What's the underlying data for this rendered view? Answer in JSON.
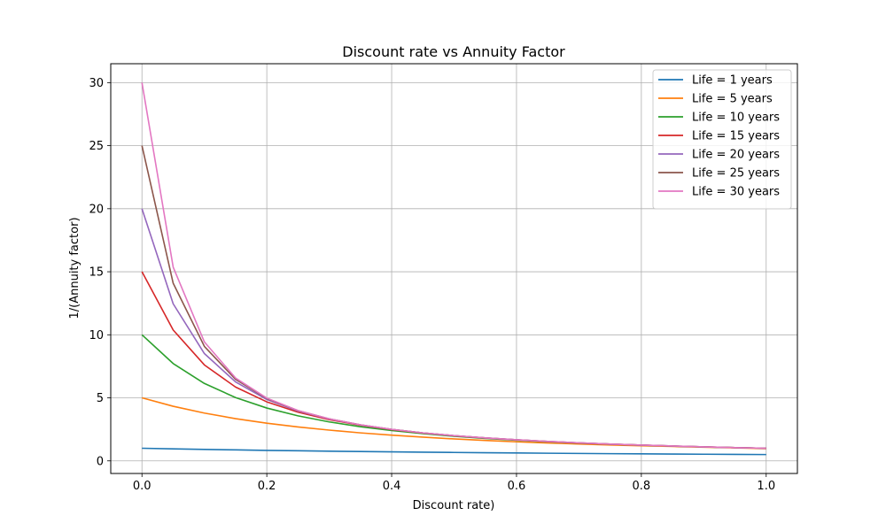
{
  "chart_data": {
    "type": "line",
    "title": "Discount rate vs Annuity Factor",
    "xlabel": "Discount rate)",
    "ylabel": "1/(Annuity factor)",
    "xlim": [
      -0.05,
      1.05
    ],
    "ylim": [
      -1.0,
      31.5
    ],
    "xticks": [
      0.0,
      0.2,
      0.4,
      0.6,
      0.8,
      1.0
    ],
    "xtick_labels": [
      "0.0",
      "0.2",
      "0.4",
      "0.6",
      "0.8",
      "1.0"
    ],
    "yticks": [
      0,
      5,
      10,
      15,
      20,
      25,
      30
    ],
    "ytick_labels": [
      "0",
      "5",
      "10",
      "15",
      "20",
      "25",
      "30"
    ],
    "grid": true,
    "legend_position": "top-right",
    "x": [
      0.0,
      0.05,
      0.1,
      0.15,
      0.2,
      0.25,
      0.3,
      0.35,
      0.4,
      0.45,
      0.5,
      0.55,
      0.6,
      0.65,
      0.7,
      0.75,
      0.8,
      0.85,
      0.9,
      0.95,
      1.0
    ],
    "series": [
      {
        "name": "Life = 1 years",
        "color": "#1f77b4",
        "values": [
          1.0,
          0.952,
          0.909,
          0.87,
          0.833,
          0.8,
          0.769,
          0.741,
          0.714,
          0.69,
          0.667,
          0.645,
          0.625,
          0.606,
          0.588,
          0.571,
          0.556,
          0.541,
          0.526,
          0.513,
          0.5
        ]
      },
      {
        "name": "Life = 5 years",
        "color": "#ff7f0e",
        "values": [
          5.0,
          4.33,
          3.79,
          3.35,
          2.99,
          2.69,
          2.44,
          2.22,
          2.04,
          1.88,
          1.74,
          1.62,
          1.51,
          1.42,
          1.34,
          1.26,
          1.2,
          1.14,
          1.08,
          1.03,
          0.97
        ]
      },
      {
        "name": "Life = 10 years",
        "color": "#2ca02c",
        "values": [
          10.0,
          7.72,
          6.14,
          5.02,
          4.19,
          3.57,
          3.09,
          2.71,
          2.41,
          2.16,
          1.95,
          1.78,
          1.64,
          1.51,
          1.41,
          1.32,
          1.24,
          1.17,
          1.1,
          1.05,
          1.0
        ]
      },
      {
        "name": "Life = 15 years",
        "color": "#d62728",
        "values": [
          15.0,
          10.38,
          7.61,
          5.85,
          4.68,
          3.86,
          3.27,
          2.83,
          2.48,
          2.21,
          1.99,
          1.81,
          1.66,
          1.53,
          1.42,
          1.33,
          1.25,
          1.17,
          1.11,
          1.05,
          1.0
        ]
      },
      {
        "name": "Life = 20 years",
        "color": "#9467bd",
        "values": [
          20.0,
          12.46,
          8.51,
          6.26,
          4.87,
          3.95,
          3.32,
          2.85,
          2.5,
          2.22,
          2.0,
          1.82,
          1.67,
          1.54,
          1.43,
          1.33,
          1.25,
          1.18,
          1.11,
          1.05,
          1.0
        ]
      },
      {
        "name": "Life = 25 years",
        "color": "#8c564b",
        "values": [
          25.0,
          14.09,
          9.08,
          6.46,
          4.95,
          3.98,
          3.33,
          2.86,
          2.5,
          2.22,
          2.0,
          1.82,
          1.67,
          1.54,
          1.43,
          1.33,
          1.25,
          1.18,
          1.11,
          1.05,
          1.0
        ]
      },
      {
        "name": "Life = 30 years",
        "color": "#e377c2",
        "values": [
          30.0,
          15.37,
          9.43,
          6.57,
          4.98,
          3.99,
          3.33,
          2.86,
          2.5,
          2.22,
          2.0,
          1.82,
          1.67,
          1.54,
          1.43,
          1.33,
          1.25,
          1.18,
          1.11,
          1.05,
          1.0
        ]
      }
    ]
  }
}
